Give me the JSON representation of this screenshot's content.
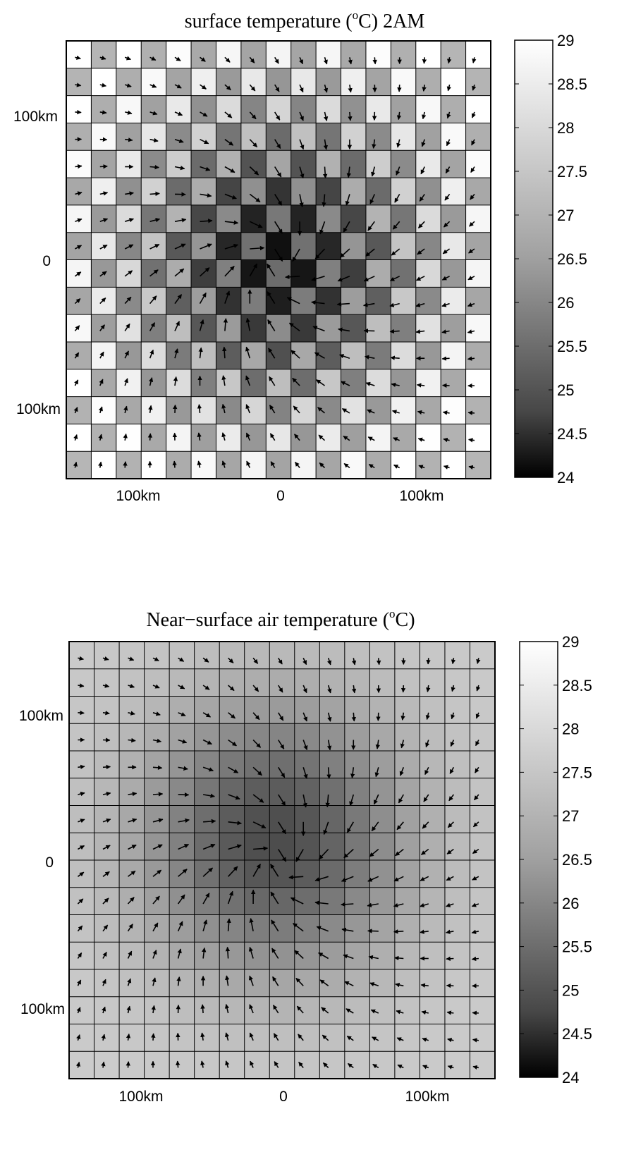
{
  "figure": {
    "panels_count": 2
  },
  "chart_data": [
    {
      "type": "heatmap",
      "title_main": "surface temperature (",
      "title_sup": "o",
      "title_tail": "C)   2AM",
      "xtick_labels": [
        "100km",
        "0",
        "100km"
      ],
      "xtick_values": [
        -100,
        0,
        100
      ],
      "ytick_labels": [
        "100km",
        "0",
        "100km"
      ],
      "ytick_values": [
        100,
        0,
        -100
      ],
      "xlim": [
        -150,
        150
      ],
      "ylim": [
        -150,
        150
      ],
      "grid": true,
      "overlay": "wind vectors (quiver) on every grid cell",
      "pattern": "checkerboard of alternating cells",
      "cells_x": 17,
      "cells_y": 16,
      "cold_center": [
        0,
        0
      ],
      "colorbar": {
        "range": [
          24,
          29
        ],
        "ticks": [
          "29",
          "28.5",
          "28",
          "27.5",
          "27",
          "26.5",
          "26",
          "25.5",
          "25",
          "24.5",
          "24"
        ],
        "colormap": "gray (black = 24, white = 29)"
      }
    },
    {
      "type": "heatmap",
      "title_main": "Near−surface air temperature (",
      "title_sup": "o",
      "title_tail": "C)",
      "xtick_labels": [
        "100km",
        "0",
        "100km"
      ],
      "xtick_values": [
        -100,
        0,
        100
      ],
      "ytick_labels": [
        "100km",
        "0",
        "100km"
      ],
      "ytick_values": [
        100,
        0,
        -100
      ],
      "xlim": [
        -150,
        150
      ],
      "ylim": [
        -150,
        150
      ],
      "grid": true,
      "overlay": "wind vectors (quiver) on every grid cell",
      "pattern": "smooth field",
      "cells_x": 17,
      "cells_y": 16,
      "cold_center": [
        0,
        0
      ],
      "colorbar": {
        "range": [
          24,
          29
        ],
        "ticks": [
          "29",
          "28.5",
          "28",
          "27.5",
          "27",
          "26.5",
          "26",
          "25.5",
          "25",
          "24.5",
          "24"
        ],
        "colormap": "gray (black = 24, white = 29)"
      }
    }
  ]
}
